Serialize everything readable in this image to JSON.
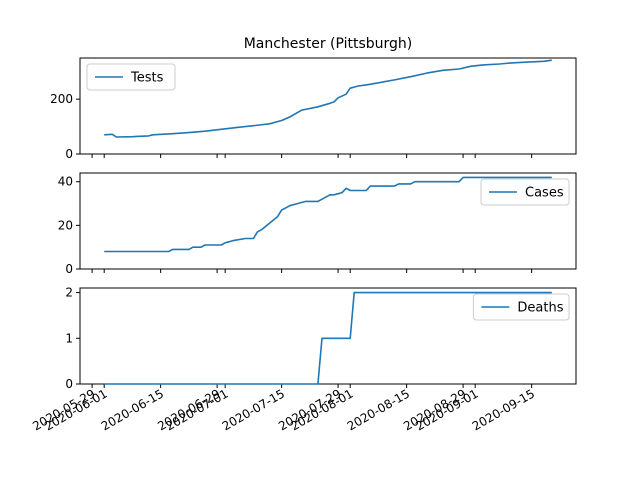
{
  "title": "Manchester (Pittsburgh)",
  "colors": {
    "series": "#1f77b4"
  },
  "chart_data": {
    "type": "line",
    "title": "Manchester (Pittsburgh)",
    "x_tick_labels": [
      "2020-05-29",
      "2020-06-01",
      "2020-06-15",
      "2020-06-29",
      "2020-07-01",
      "2020-07-15",
      "2020-07-29",
      "2020-08-01",
      "2020-08-15",
      "2020-08-29",
      "2020-09-01",
      "2020-09-15"
    ],
    "xlim": [
      "2020-05-26",
      "2020-09-26"
    ],
    "panels": [
      {
        "series_name": "Tests",
        "legend_position": "upper-left",
        "ylim": [
          0,
          350
        ],
        "y_ticks": [
          0,
          200
        ],
        "x": [
          "2020-06-01",
          "2020-06-03",
          "2020-06-04",
          "2020-06-08",
          "2020-06-09",
          "2020-06-12",
          "2020-06-13",
          "2020-06-18",
          "2020-06-22",
          "2020-06-26",
          "2020-06-30",
          "2020-07-04",
          "2020-07-08",
          "2020-07-12",
          "2020-07-15",
          "2020-07-17",
          "2020-07-20",
          "2020-07-24",
          "2020-07-27",
          "2020-07-28",
          "2020-07-29",
          "2020-07-31",
          "2020-08-01",
          "2020-08-03",
          "2020-08-05",
          "2020-08-09",
          "2020-08-12",
          "2020-08-16",
          "2020-08-20",
          "2020-08-24",
          "2020-08-28",
          "2020-08-31",
          "2020-09-03",
          "2020-09-07",
          "2020-09-10",
          "2020-09-14",
          "2020-09-18",
          "2020-09-20"
        ],
        "values": [
          70,
          72,
          62,
          63,
          64,
          66,
          70,
          74,
          78,
          83,
          90,
          97,
          103,
          110,
          122,
          135,
          160,
          172,
          185,
          190,
          205,
          218,
          240,
          248,
          252,
          262,
          270,
          282,
          295,
          305,
          310,
          320,
          325,
          328,
          332,
          335,
          338,
          342
        ]
      },
      {
        "series_name": "Cases",
        "legend_position": "upper-right",
        "ylim": [
          0,
          44
        ],
        "y_ticks": [
          0,
          20,
          40
        ],
        "x": [
          "2020-06-01",
          "2020-06-17",
          "2020-06-18",
          "2020-06-22",
          "2020-06-23",
          "2020-06-25",
          "2020-06-26",
          "2020-06-30",
          "2020-07-01",
          "2020-07-03",
          "2020-07-06",
          "2020-07-08",
          "2020-07-09",
          "2020-07-10",
          "2020-07-14",
          "2020-07-15",
          "2020-07-16",
          "2020-07-17",
          "2020-07-19",
          "2020-07-21",
          "2020-07-22",
          "2020-07-24",
          "2020-07-25",
          "2020-07-27",
          "2020-07-28",
          "2020-07-30",
          "2020-07-31",
          "2020-08-01",
          "2020-08-02",
          "2020-08-05",
          "2020-08-06",
          "2020-08-12",
          "2020-08-13",
          "2020-08-16",
          "2020-08-17",
          "2020-08-28",
          "2020-08-29",
          "2020-09-20"
        ],
        "values": [
          8,
          8,
          9,
          9,
          10,
          10,
          11,
          11,
          12,
          13,
          14,
          14,
          17,
          18,
          24,
          27,
          28,
          29,
          30,
          31,
          31,
          31,
          32,
          34,
          34,
          35,
          37,
          36,
          36,
          36,
          38,
          38,
          39,
          39,
          40,
          40,
          42,
          42
        ]
      },
      {
        "series_name": "Deaths",
        "legend_position": "upper-right",
        "ylim": [
          0,
          2.1
        ],
        "y_ticks": [
          0,
          1,
          2
        ],
        "x": [
          "2020-06-01",
          "2020-07-24",
          "2020-07-25",
          "2020-08-01",
          "2020-08-02",
          "2020-09-20"
        ],
        "values": [
          0,
          0,
          1,
          1,
          2,
          2
        ]
      }
    ]
  }
}
